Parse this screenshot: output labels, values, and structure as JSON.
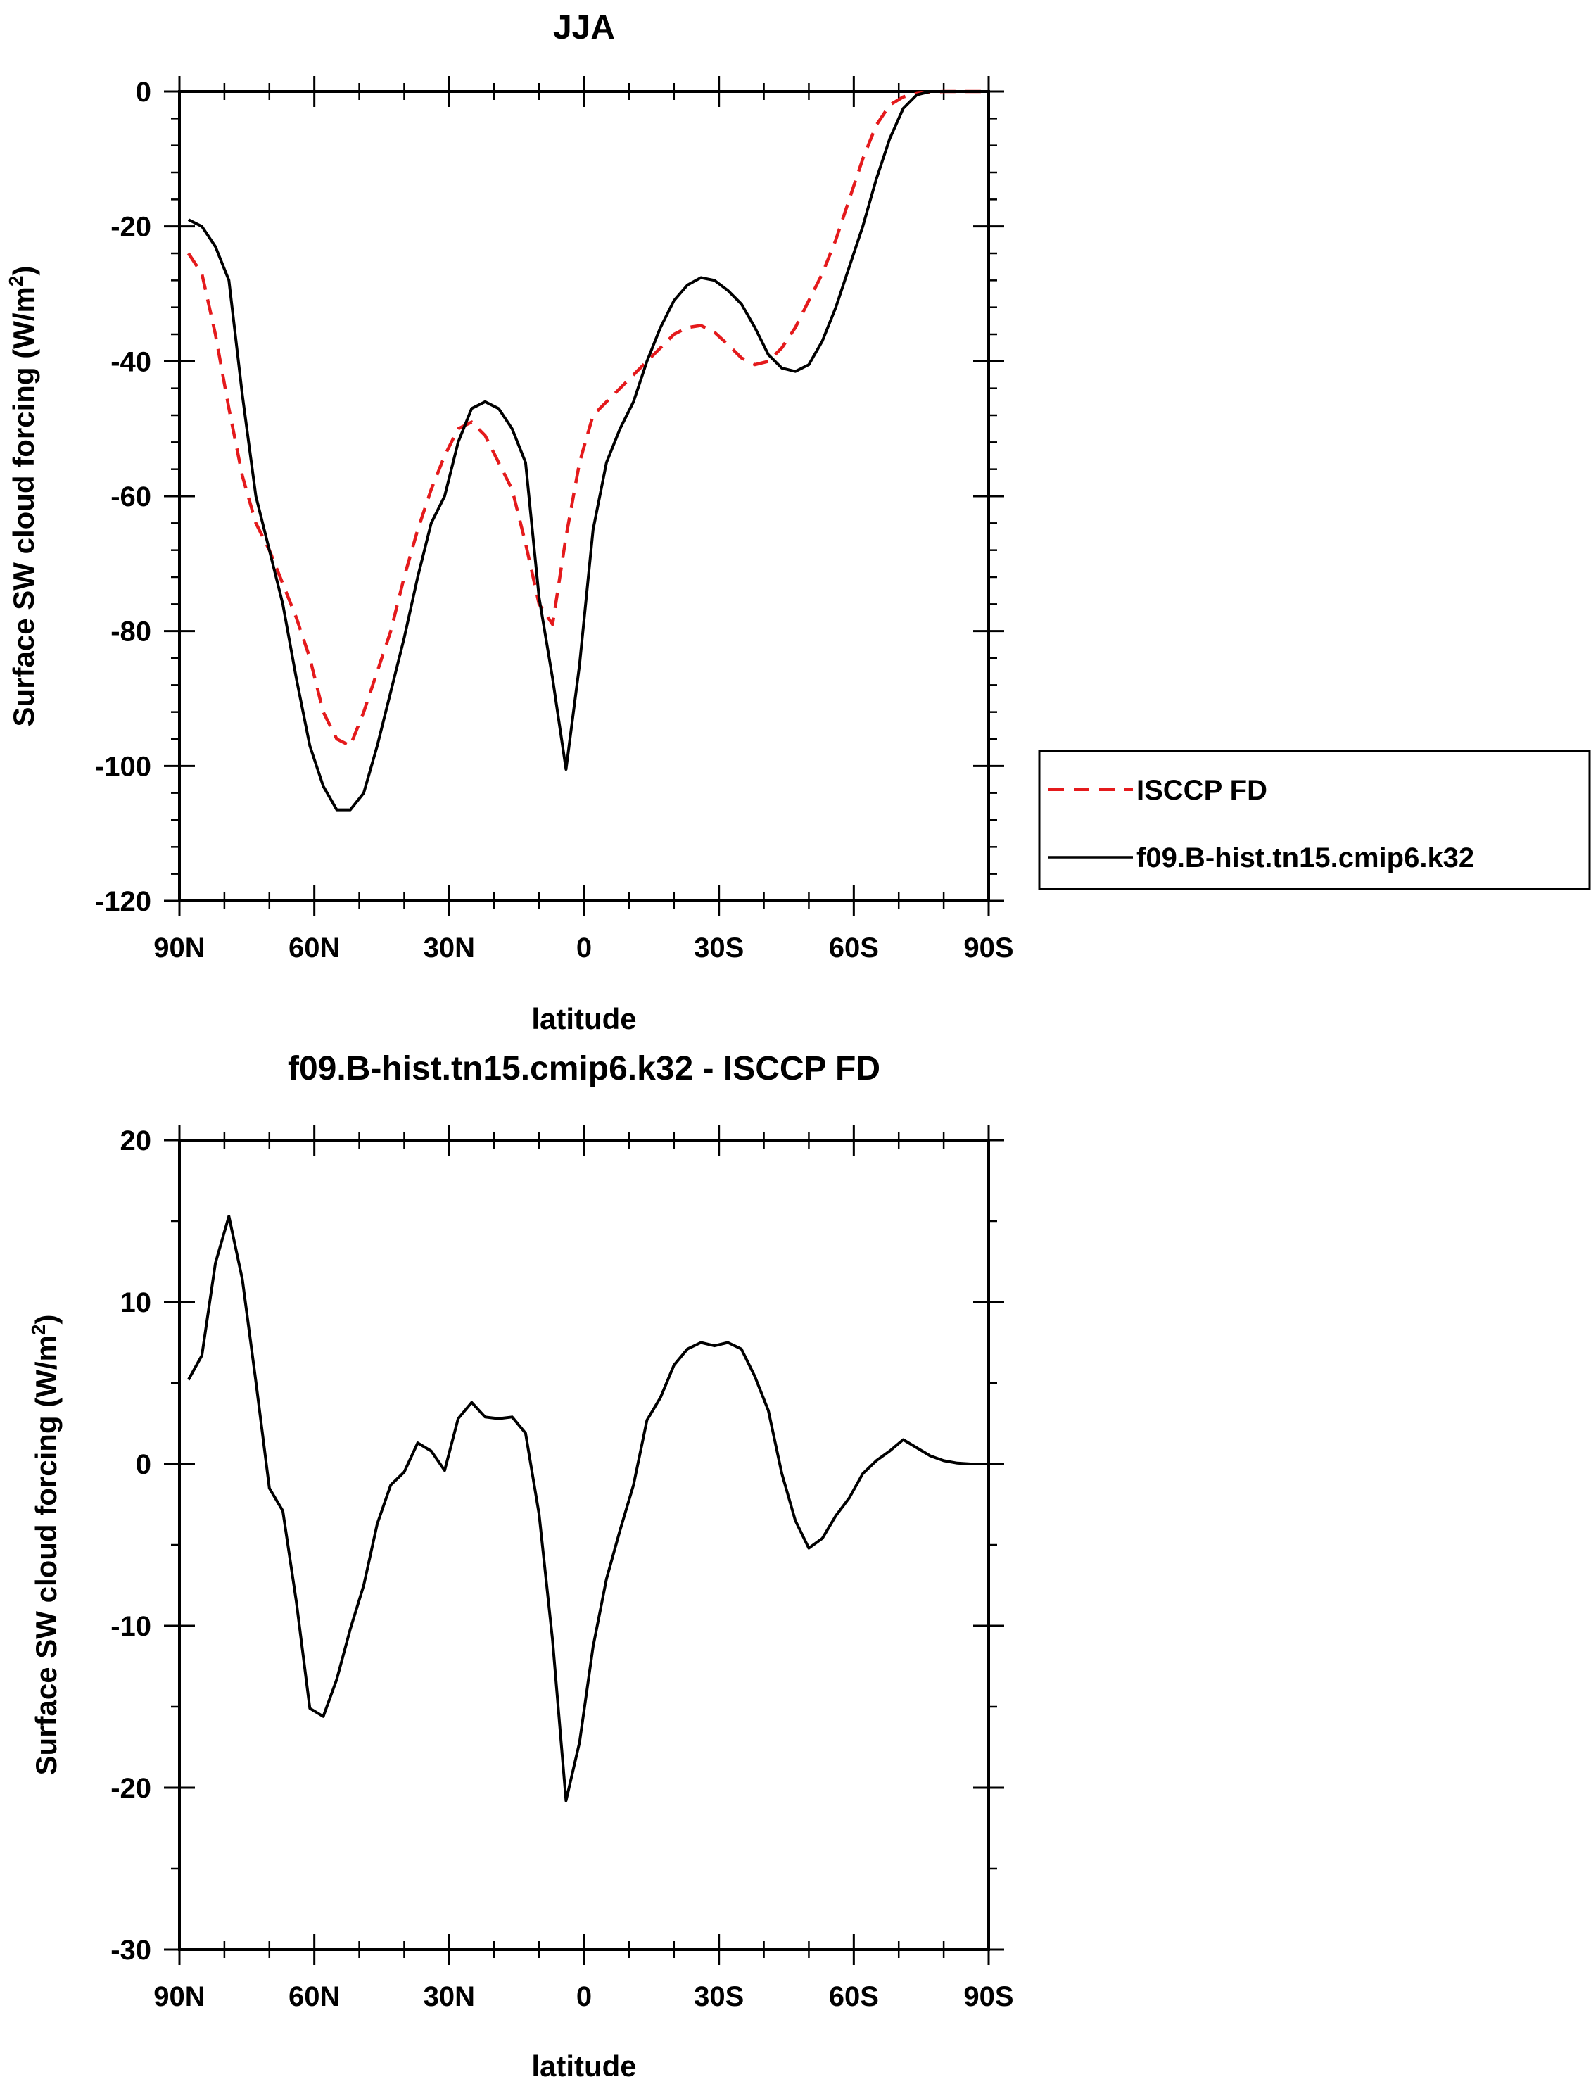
{
  "chart_data": [
    {
      "type": "line",
      "title": "JJA",
      "xlabel": "latitude",
      "ylabel": "Surface SW cloud forcing (W/m",
      "ylabel_sup": "2",
      "ylabel_close": ")",
      "xlim": [
        90,
        -90
      ],
      "ylim": [
        -120,
        0
      ],
      "x_ticks": [
        90,
        60,
        30,
        0,
        -30,
        -60,
        -90
      ],
      "x_tick_labels": [
        "90N",
        "60N",
        "30N",
        "0",
        "30S",
        "60S",
        "90S"
      ],
      "y_ticks": [
        0,
        -20,
        -40,
        -60,
        -80,
        -100,
        -120
      ],
      "y_tick_labels": [
        "0",
        "-20",
        "-40",
        "-60",
        "-80",
        "-100",
        "-120"
      ],
      "legend": "right",
      "grid": false,
      "series": [
        {
          "name": "ISCCP FD",
          "color": "#e41a1c",
          "dash": "dashed",
          "x": [
            88,
            85,
            82,
            79,
            76,
            73,
            70,
            67,
            64,
            61,
            58,
            55,
            52,
            49,
            46,
            43,
            40,
            37,
            34,
            31,
            28,
            25,
            22,
            19,
            16,
            13,
            10,
            7,
            4,
            1,
            -2,
            -5,
            -8,
            -11,
            -14,
            -17,
            -20,
            -23,
            -26,
            -29,
            -32,
            -35,
            -38,
            -41,
            -44,
            -47,
            -50,
            -53,
            -56,
            -59,
            -62,
            -65,
            -68,
            -71,
            -74,
            -77,
            -80,
            -83,
            -86,
            -89
          ],
          "y": [
            -24,
            -27,
            -36,
            -47,
            -57,
            -64,
            -68,
            -73,
            -78,
            -84,
            -92,
            -96,
            -97,
            -92,
            -86,
            -80,
            -72,
            -65,
            -59,
            -54,
            -50,
            -49,
            -51,
            -55,
            -59,
            -67,
            -76,
            -79,
            -66,
            -55,
            -48,
            -46,
            -44,
            -42,
            -40,
            -38,
            -36,
            -35,
            -34.7,
            -35.7,
            -37.5,
            -39.5,
            -40.5,
            -40,
            -38,
            -35,
            -31,
            -27,
            -22,
            -16,
            -10,
            -5,
            -2,
            -0.8,
            -0.3,
            -0.1,
            0,
            0,
            0,
            0
          ]
        },
        {
          "name": "f09.B-hist.tn15.cmip6.k32",
          "color": "#000000",
          "dash": "solid",
          "x": [
            88,
            85,
            82,
            79,
            76,
            73,
            70,
            67,
            64,
            61,
            58,
            55,
            52,
            49,
            46,
            43,
            40,
            37,
            34,
            31,
            28,
            25,
            22,
            19,
            16,
            13,
            10,
            7,
            4,
            1,
            -2,
            -5,
            -8,
            -11,
            -14,
            -17,
            -20,
            -23,
            -26,
            -29,
            -32,
            -35,
            -38,
            -41,
            -44,
            -47,
            -50,
            -53,
            -56,
            -59,
            -62,
            -65,
            -68,
            -71,
            -74,
            -77,
            -80,
            -83,
            -86,
            -89
          ],
          "y": [
            -19,
            -20,
            -23,
            -28,
            -45,
            -60,
            -68,
            -76,
            -87,
            -97,
            -103,
            -106.5,
            -106.5,
            -104,
            -97,
            -89,
            -81,
            -72,
            -64,
            -60,
            -52,
            -47,
            -46,
            -47,
            -50,
            -55,
            -75,
            -87,
            -100.5,
            -85,
            -65,
            -55,
            -50,
            -46,
            -40,
            -35,
            -31,
            -28.7,
            -27.6,
            -28,
            -29.5,
            -31.5,
            -35,
            -39,
            -41,
            -41.5,
            -40.5,
            -37,
            -32,
            -26,
            -20,
            -13,
            -7,
            -2.5,
            -0.5,
            0,
            0,
            0,
            0,
            0
          ]
        }
      ]
    },
    {
      "type": "line",
      "title": "f09.B-hist.tn15.cmip6.k32 - ISCCP FD",
      "xlabel": "latitude",
      "ylabel": "Surface SW cloud forcing (W/m",
      "ylabel_sup": "2",
      "ylabel_close": ")",
      "xlim": [
        90,
        -90
      ],
      "ylim": [
        -30,
        20
      ],
      "x_ticks": [
        90,
        60,
        30,
        0,
        -30,
        -60,
        -90
      ],
      "x_tick_labels": [
        "90N",
        "60N",
        "30N",
        "0",
        "30S",
        "60S",
        "90S"
      ],
      "y_ticks": [
        20,
        10,
        0,
        -10,
        -20,
        -30
      ],
      "y_tick_labels": [
        "20",
        "10",
        "0",
        "-10",
        "-20",
        "-30"
      ],
      "grid": false,
      "series": [
        {
          "color": "#000000",
          "dash": "solid",
          "x": [
            88,
            85,
            82,
            79,
            76,
            73,
            70,
            67,
            64,
            61,
            58,
            55,
            52,
            49,
            46,
            43,
            40,
            37,
            34,
            31,
            28,
            25,
            22,
            19,
            16,
            13,
            10,
            7,
            4,
            1,
            -2,
            -5,
            -8,
            -11,
            -14,
            -17,
            -20,
            -23,
            -26,
            -29,
            -32,
            -35,
            -38,
            -41,
            -44,
            -47,
            -50,
            -53,
            -56,
            -59,
            -62,
            -65,
            -68,
            -71,
            -74,
            -77,
            -80,
            -83,
            -86,
            -89
          ],
          "y": [
            5.2,
            6.7,
            12.4,
            15.3,
            11.4,
            5.1,
            -1.5,
            -2.9,
            -8.5,
            -15.1,
            -15.6,
            -13.3,
            -10.2,
            -7.5,
            -3.7,
            -1.3,
            -0.5,
            1.3,
            0.8,
            -0.4,
            2.8,
            3.8,
            2.9,
            2.8,
            2.9,
            1.9,
            -3.1,
            -10.9,
            -20.8,
            -17.2,
            -11.3,
            -7.1,
            -4.1,
            -1.3,
            2.7,
            4.1,
            6.1,
            7.1,
            7.5,
            7.3,
            7.5,
            7.1,
            5.4,
            3.3,
            -0.6,
            -3.5,
            -5.2,
            -4.6,
            -3.2,
            -2.1,
            -0.6,
            0.2,
            0.8,
            1.5,
            1.0,
            0.5,
            0.2,
            0.05,
            0,
            0
          ]
        }
      ]
    }
  ]
}
